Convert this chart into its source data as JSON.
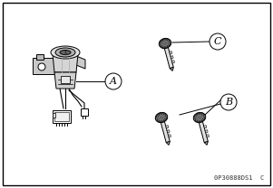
{
  "background_color": "#ffffff",
  "border_color": "#000000",
  "label_A": "A",
  "label_B": "B",
  "label_C": "C",
  "caption": "0P30888DS1  C",
  "fig_width": 3.01,
  "fig_height": 2.08,
  "dpi": 100,
  "lw": 0.7,
  "ec": "#000000",
  "key_head_color": "#444444",
  "key_blade_color": "#222222",
  "cyl_color": "#cccccc",
  "label_circ_r": 9,
  "label_fontsize": 8,
  "caption_fontsize": 5,
  "caption_color": "#333333"
}
